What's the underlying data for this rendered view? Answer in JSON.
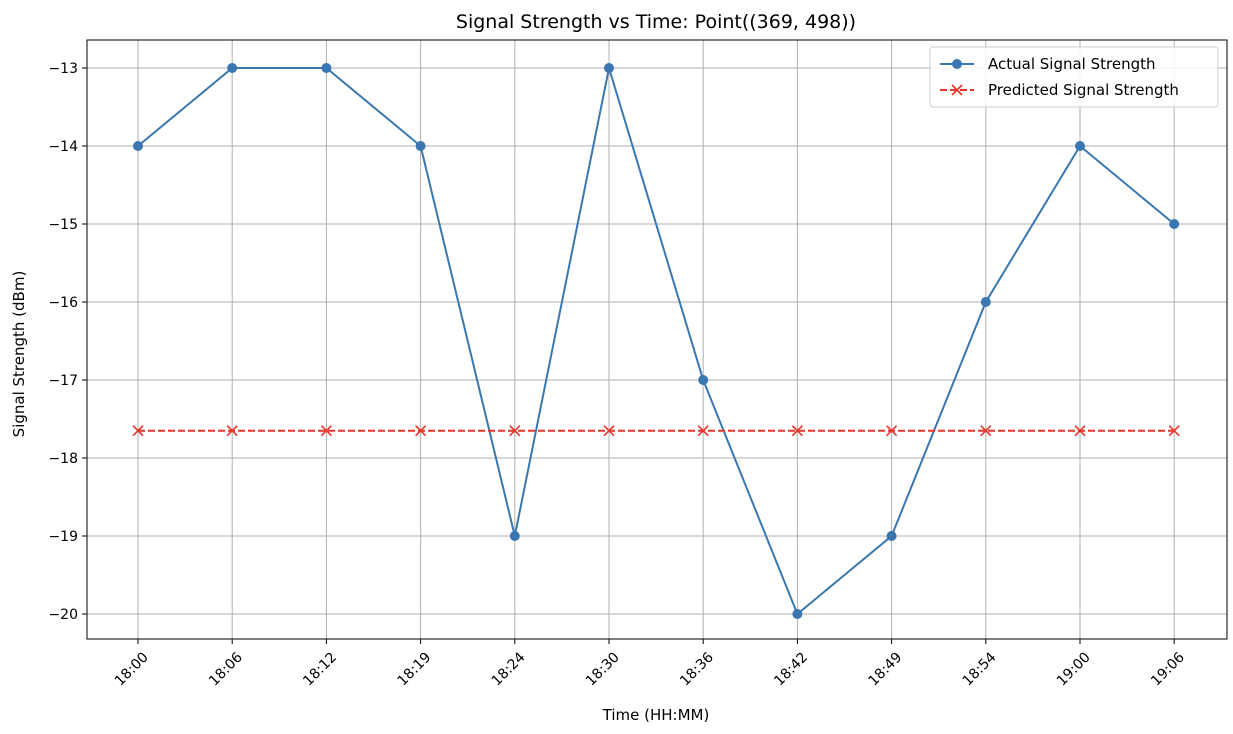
{
  "chart_data": {
    "type": "line",
    "title": "Signal Strength vs Time: Point((369, 498))",
    "xlabel": "Time (HH:MM)",
    "ylabel": "Signal Strength (dBm)",
    "categories": [
      "18:00",
      "18:06",
      "18:12",
      "18:19",
      "18:24",
      "18:30",
      "18:36",
      "18:42",
      "18:49",
      "18:54",
      "19:00",
      "19:06"
    ],
    "yticks": [
      -13,
      -14,
      -15,
      -16,
      -17,
      -18,
      -19,
      -20
    ],
    "ytick_labels": [
      "−13",
      "−14",
      "−15",
      "−16",
      "−17",
      "−18",
      "−19",
      "−20"
    ],
    "ylim": [
      -20.35,
      -12.65
    ],
    "grid": true,
    "legend_position": "top-right",
    "series": [
      {
        "name": "Actual Signal Strength",
        "values": [
          -14,
          -13,
          -13,
          -14,
          -19,
          -13,
          -17,
          -20,
          -19,
          -16,
          -14,
          -15
        ],
        "color": "#3a77b0",
        "line_style": "solid",
        "marker": "circle"
      },
      {
        "name": "Predicted Signal Strength",
        "values": [
          -17.65,
          -17.65,
          -17.65,
          -17.65,
          -17.65,
          -17.65,
          -17.65,
          -17.65,
          -17.65,
          -17.65,
          -17.65,
          -17.65
        ],
        "color": "#e8352b",
        "line_style": "dashed",
        "marker": "x"
      }
    ]
  }
}
